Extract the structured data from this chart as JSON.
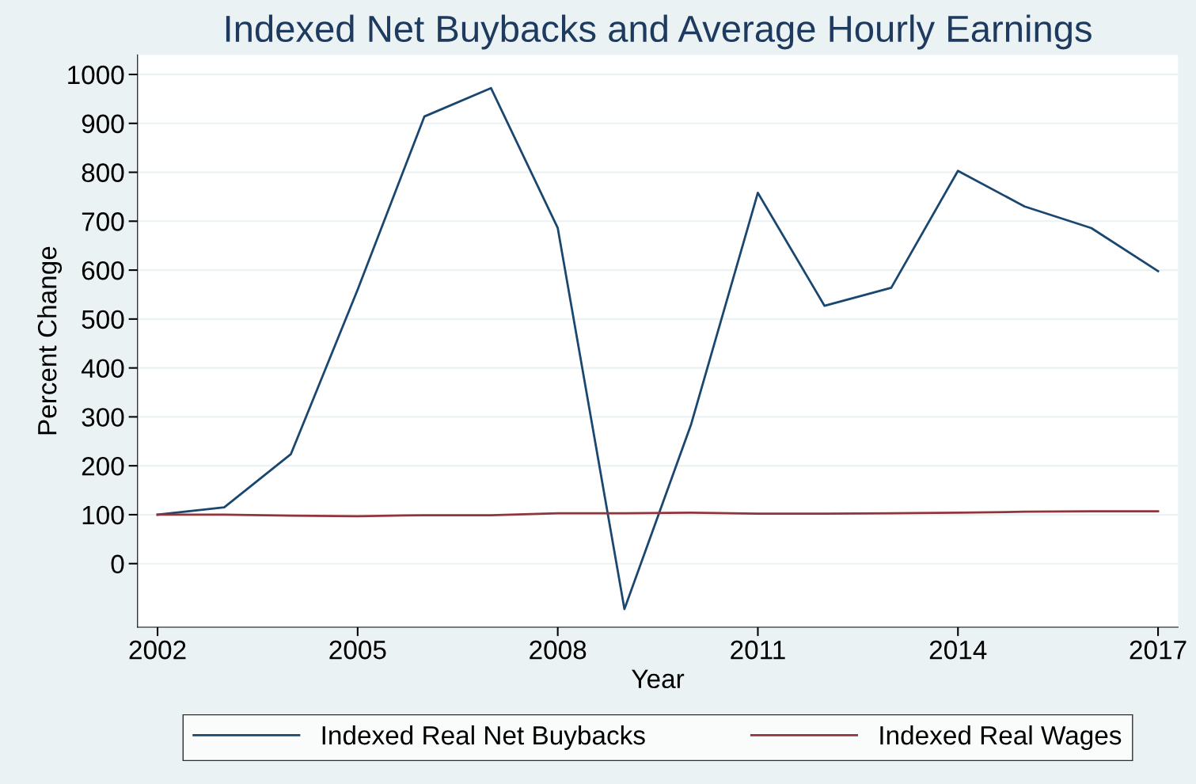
{
  "chart_data": {
    "type": "line",
    "title": "Indexed Net Buybacks and Average Hourly Earnings",
    "xlabel": "Year",
    "ylabel": "Percent Change",
    "x": [
      2002,
      2003,
      2004,
      2005,
      2006,
      2007,
      2008,
      2009,
      2010,
      2011,
      2012,
      2013,
      2014,
      2015,
      2016,
      2017
    ],
    "series": [
      {
        "name": "Indexed Real Net Buybacks",
        "color": "#1a476f",
        "values": [
          100,
          115,
          224,
          560,
          914,
          972,
          686,
          -93,
          285,
          758,
          527,
          564,
          803,
          730,
          686,
          598
        ]
      },
      {
        "name": "Indexed Real Wages",
        "color": "#90353b",
        "values": [
          100,
          100,
          98,
          97,
          99,
          99,
          103,
          103,
          104,
          102,
          102,
          103,
          104,
          106,
          107,
          107
        ]
      }
    ],
    "xlim": [
      2001.7,
      2017.3
    ],
    "xticks": [
      2002,
      2005,
      2008,
      2011,
      2014,
      2017
    ],
    "ylim": [
      -130,
      1040
    ],
    "yticks": [
      0,
      100,
      200,
      300,
      400,
      500,
      600,
      700,
      800,
      900,
      1000
    ],
    "grid": "y",
    "legend": "bottom",
    "marker": "none",
    "line_style": "solid"
  }
}
